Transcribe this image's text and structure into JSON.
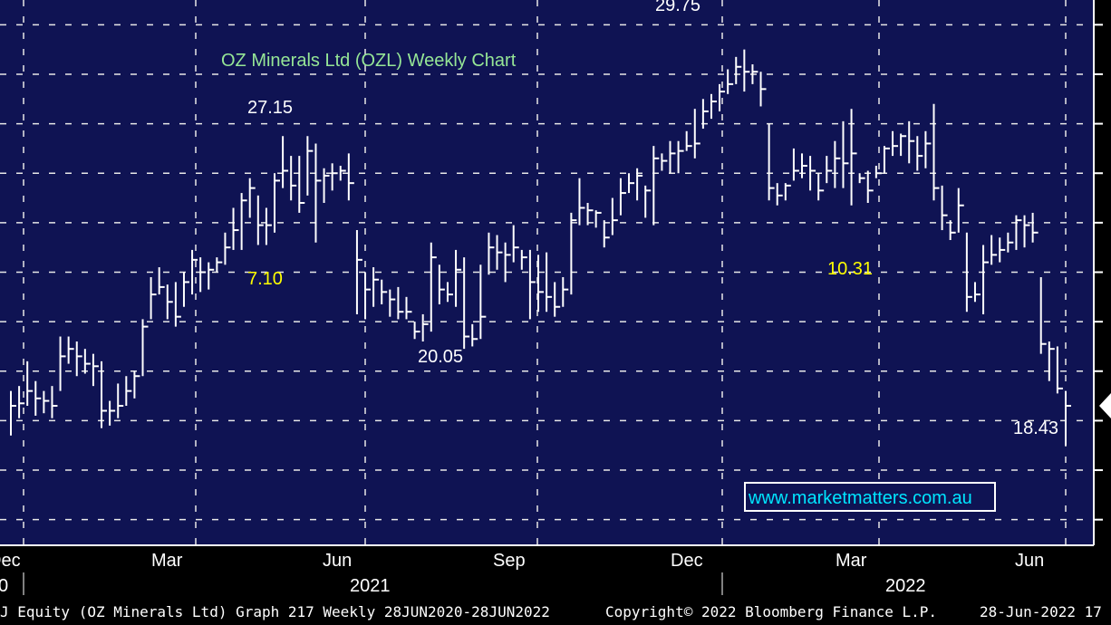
{
  "chart_data": {
    "type": "bar",
    "subtype": "ohlc-weekly",
    "title": "OZ Minerals Ltd (OZL) Weekly Chart",
    "xlabel": "",
    "ylabel": "",
    "month_labels": [
      "Dec",
      "Mar",
      "Jun",
      "Sep",
      "Dec",
      "Mar",
      "Jun"
    ],
    "year_labels": [
      "0",
      "2021",
      "2022"
    ],
    "annotations": [
      {
        "text": "29.75",
        "color": "#ffffff"
      },
      {
        "text": "27.15",
        "color": "#ffffff"
      },
      {
        "text": "7.10",
        "color": "#ffff00"
      },
      {
        "text": "10.31",
        "color": "#ffff00"
      },
      {
        "text": "20.05",
        "color": "#ffffff"
      },
      {
        "text": "18.43",
        "color": "#ffffff"
      }
    ],
    "weeks": [
      {
        "h": 15.2,
        "l": 13.4,
        "c": 14.6
      },
      {
        "h": 15.4,
        "l": 14.1,
        "c": 14.7
      },
      {
        "h": 16.4,
        "l": 14.6,
        "c": 15.2
      },
      {
        "h": 15.6,
        "l": 14.2,
        "c": 14.9
      },
      {
        "h": 15.2,
        "l": 14.3,
        "c": 14.8
      },
      {
        "h": 15.4,
        "l": 14.1,
        "c": 14.6
      },
      {
        "h": 17.4,
        "l": 15.2,
        "c": 16.6
      },
      {
        "h": 17.4,
        "l": 16.3,
        "c": 16.9
      },
      {
        "h": 17.2,
        "l": 15.8,
        "c": 16.6
      },
      {
        "h": 16.9,
        "l": 15.9,
        "c": 16.3
      },
      {
        "h": 16.7,
        "l": 15.4,
        "c": 16.2
      },
      {
        "h": 16.4,
        "l": 13.7,
        "c": 14.4
      },
      {
        "h": 14.8,
        "l": 13.8,
        "c": 14.4
      },
      {
        "h": 15.5,
        "l": 14.1,
        "c": 14.6
      },
      {
        "h": 15.8,
        "l": 14.6,
        "c": 15.2
      },
      {
        "h": 16.0,
        "l": 14.9,
        "c": 15.8
      },
      {
        "h": 18.1,
        "l": 15.8,
        "c": 17.8
      },
      {
        "h": 19.8,
        "l": 18.1,
        "c": 19.1
      },
      {
        "h": 20.2,
        "l": 19.1,
        "c": 19.4
      },
      {
        "h": 19.5,
        "l": 18.1,
        "c": 18.8
      },
      {
        "h": 19.6,
        "l": 17.8,
        "c": 18.2
      },
      {
        "h": 20.0,
        "l": 18.6,
        "c": 19.6
      },
      {
        "h": 20.9,
        "l": 19.1,
        "c": 20.5
      },
      {
        "h": 20.6,
        "l": 19.2,
        "c": 20.0
      },
      {
        "h": 20.4,
        "l": 19.3,
        "c": 20.1
      },
      {
        "h": 20.6,
        "l": 20.0,
        "c": 20.4
      },
      {
        "h": 21.6,
        "l": 20.3,
        "c": 21.0
      },
      {
        "h": 22.6,
        "l": 20.9,
        "c": 21.7
      },
      {
        "h": 23.2,
        "l": 20.9,
        "c": 22.9
      },
      {
        "h": 23.8,
        "l": 22.2,
        "c": 23.4
      },
      {
        "h": 23.1,
        "l": 21.1,
        "c": 21.9
      },
      {
        "h": 22.6,
        "l": 21.1,
        "c": 21.9
      },
      {
        "h": 24.0,
        "l": 21.6,
        "c": 23.7
      },
      {
        "h": 25.5,
        "l": 23.4,
        "c": 24.1
      },
      {
        "h": 24.7,
        "l": 22.9,
        "c": 23.5
      },
      {
        "h": 24.7,
        "l": 22.4,
        "c": 22.8
      },
      {
        "h": 25.5,
        "l": 23.1,
        "c": 24.9
      },
      {
        "h": 25.2,
        "l": 21.2,
        "c": 23.7
      },
      {
        "h": 24.2,
        "l": 22.8,
        "c": 23.9
      },
      {
        "h": 24.4,
        "l": 23.3,
        "c": 24.0
      },
      {
        "h": 24.3,
        "l": 23.7,
        "c": 24.1
      },
      {
        "h": 24.8,
        "l": 22.9,
        "c": 23.6
      },
      {
        "h": 21.7,
        "l": 18.3,
        "c": 20.5
      },
      {
        "h": 20.0,
        "l": 18.1,
        "c": 19.3
      },
      {
        "h": 20.2,
        "l": 18.6,
        "c": 19.7
      },
      {
        "h": 19.7,
        "l": 18.7,
        "c": 19.2
      },
      {
        "h": 19.3,
        "l": 18.2,
        "c": 18.9
      },
      {
        "h": 19.4,
        "l": 18.1,
        "c": 18.4
      },
      {
        "h": 19.0,
        "l": 18.1,
        "c": 18.4
      },
      {
        "h": 18.0,
        "l": 17.3,
        "c": 17.6
      },
      {
        "h": 18.3,
        "l": 17.2,
        "c": 17.9
      },
      {
        "h": 21.2,
        "l": 17.6,
        "c": 20.6
      },
      {
        "h": 20.3,
        "l": 18.7,
        "c": 19.3
      },
      {
        "h": 19.6,
        "l": 18.8,
        "c": 19.1
      },
      {
        "h": 20.9,
        "l": 18.6,
        "c": 20.1
      },
      {
        "h": 20.6,
        "l": 16.9,
        "c": 17.4
      },
      {
        "h": 17.9,
        "l": 17.0,
        "c": 17.3
      },
      {
        "h": 20.3,
        "l": 17.3,
        "c": 18.2
      },
      {
        "h": 21.6,
        "l": 19.9,
        "c": 21.0
      },
      {
        "h": 21.5,
        "l": 20.1,
        "c": 20.8
      },
      {
        "h": 21.2,
        "l": 19.6,
        "c": 20.7
      },
      {
        "h": 21.9,
        "l": 20.4,
        "c": 21.0
      },
      {
        "h": 20.9,
        "l": 20.1,
        "c": 20.6
      },
      {
        "h": 20.9,
        "l": 18.1,
        "c": 19.6
      },
      {
        "h": 20.7,
        "l": 18.4,
        "c": 19.2
      },
      {
        "h": 20.8,
        "l": 18.4,
        "c": 19.0
      },
      {
        "h": 19.6,
        "l": 18.2,
        "c": 18.6
      },
      {
        "h": 19.8,
        "l": 18.6,
        "c": 19.3
      },
      {
        "h": 22.4,
        "l": 19.1,
        "c": 22.1
      },
      {
        "h": 23.8,
        "l": 21.9,
        "c": 22.6
      },
      {
        "h": 22.8,
        "l": 21.9,
        "c": 22.5
      },
      {
        "h": 22.5,
        "l": 21.8,
        "c": 22.4
      },
      {
        "h": 22.1,
        "l": 21.0,
        "c": 21.4
      },
      {
        "h": 23.0,
        "l": 21.5,
        "c": 22.1
      },
      {
        "h": 23.8,
        "l": 22.3,
        "c": 23.2
      },
      {
        "h": 24.0,
        "l": 23.2,
        "c": 23.6
      },
      {
        "h": 24.2,
        "l": 22.9,
        "c": 23.9
      },
      {
        "h": 23.5,
        "l": 22.2,
        "c": 23.3
      },
      {
        "h": 25.1,
        "l": 21.9,
        "c": 24.6
      },
      {
        "h": 24.8,
        "l": 24.1,
        "c": 24.5
      },
      {
        "h": 25.3,
        "l": 24.0,
        "c": 24.8
      },
      {
        "h": 25.3,
        "l": 24.0,
        "c": 24.9
      },
      {
        "h": 25.7,
        "l": 24.9,
        "c": 25.1
      },
      {
        "h": 26.6,
        "l": 24.6,
        "c": 25.2
      },
      {
        "h": 27.0,
        "l": 25.8,
        "c": 26.5
      },
      {
        "h": 27.2,
        "l": 26.2,
        "c": 26.9
      },
      {
        "h": 27.6,
        "l": 26.5,
        "c": 27.3
      },
      {
        "h": 28.2,
        "l": 27.2,
        "c": 27.6
      },
      {
        "h": 28.7,
        "l": 27.6,
        "c": 28.3
      },
      {
        "h": 29.0,
        "l": 27.3,
        "c": 28.1
      },
      {
        "h": 28.4,
        "l": 27.6,
        "c": 28.1
      },
      {
        "h": 28.1,
        "l": 26.7,
        "c": 27.4
      },
      {
        "h": 26.0,
        "l": 22.9,
        "c": 23.4
      },
      {
        "h": 23.6,
        "l": 22.7,
        "c": 23.1
      },
      {
        "h": 23.6,
        "l": 22.9,
        "c": 23.5
      },
      {
        "h": 25.0,
        "l": 23.7,
        "c": 24.1
      },
      {
        "h": 24.8,
        "l": 23.8,
        "c": 24.3
      },
      {
        "h": 24.7,
        "l": 23.3,
        "c": 24.1
      },
      {
        "h": 24.0,
        "l": 22.9,
        "c": 23.3
      },
      {
        "h": 24.7,
        "l": 23.6,
        "c": 24.1
      },
      {
        "h": 25.3,
        "l": 23.4,
        "c": 24.6
      },
      {
        "h": 26.1,
        "l": 23.4,
        "c": 24.4
      },
      {
        "h": 26.6,
        "l": 22.7,
        "c": 24.8
      },
      {
        "h": 24.0,
        "l": 23.6,
        "c": 23.8
      },
      {
        "h": 24.1,
        "l": 22.8,
        "c": 23.3
      },
      {
        "h": 24.3,
        "l": 23.8,
        "c": 24.0
      },
      {
        "h": 25.1,
        "l": 24.0,
        "c": 25.0
      },
      {
        "h": 25.7,
        "l": 24.7,
        "c": 25.1
      },
      {
        "h": 25.6,
        "l": 24.7,
        "c": 25.5
      },
      {
        "h": 26.1,
        "l": 24.4,
        "c": 25.3
      },
      {
        "h": 25.5,
        "l": 24.1,
        "c": 24.7
      },
      {
        "h": 25.7,
        "l": 24.2,
        "c": 25.2
      },
      {
        "h": 26.8,
        "l": 22.9,
        "c": 23.4
      },
      {
        "h": 23.5,
        "l": 21.7,
        "c": 22.3
      },
      {
        "h": 22.1,
        "l": 21.3,
        "c": 21.6
      },
      {
        "h": 23.4,
        "l": 21.6,
        "c": 22.7
      },
      {
        "h": 21.6,
        "l": 18.4,
        "c": 19.0
      },
      {
        "h": 19.6,
        "l": 18.8,
        "c": 19.1
      },
      {
        "h": 21.1,
        "l": 18.3,
        "c": 20.4
      },
      {
        "h": 21.5,
        "l": 20.3,
        "c": 20.7
      },
      {
        "h": 21.4,
        "l": 20.4,
        "c": 20.9
      },
      {
        "h": 21.6,
        "l": 20.8,
        "c": 21.2
      },
      {
        "h": 22.3,
        "l": 20.9,
        "c": 22.1
      },
      {
        "h": 22.3,
        "l": 21.0,
        "c": 21.9
      },
      {
        "h": 22.4,
        "l": 21.2,
        "c": 21.6
      },
      {
        "h": 19.8,
        "l": 16.7,
        "c": 17.1
      },
      {
        "h": 17.2,
        "l": 15.6,
        "c": 16.9
      },
      {
        "h": 17.0,
        "l": 15.1,
        "c": 15.3
      },
      {
        "h": 15.2,
        "l": 13.0,
        "c": 14.6
      }
    ],
    "y_ticks": [
      30,
      28,
      26,
      24,
      22,
      20,
      18,
      16,
      14,
      12,
      10
    ],
    "ylim": [
      9,
      31
    ],
    "last_price": 14.6,
    "grid": true
  },
  "watermark": "www.marketmatters.com.au",
  "footer": {
    "left": "J Equity (OZ Minerals Ltd) Graph 217  Weekly 28JUN2020-28JUN2022",
    "copyright": "Copyright© 2022 Bloomberg Finance L.P.",
    "date": "28-Jun-2022 17"
  },
  "colors": {
    "plot_bg": "#0f1353",
    "grid": "#e8e8e8",
    "bars": "#ffffff",
    "title": "#96e696",
    "annotation_yellow": "#ffff00",
    "watermark": "#00e5ff"
  }
}
